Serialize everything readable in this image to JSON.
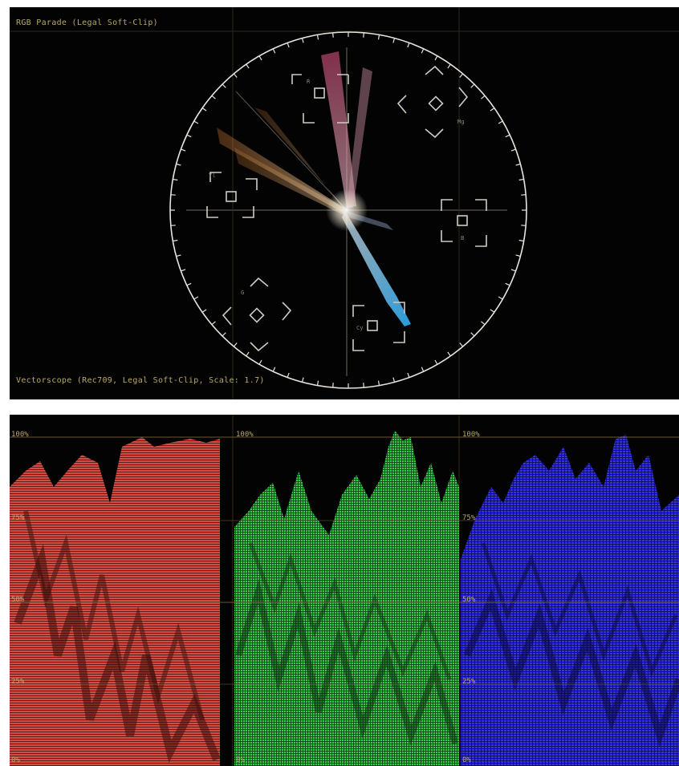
{
  "vectorscope": {
    "top_label": "RGB Parade (Legal Soft-Clip)",
    "bottom_label": "Vectorscope (Rec709, Legal Soft-Clip, Scale: 1.7)",
    "target_labels": [
      "R",
      "Mg",
      "B",
      "Cy",
      "G",
      "Yl"
    ],
    "colors": {
      "graticule": "#e8e4dc",
      "crosshair": "#6b6a5a",
      "label": "#b8a86a"
    }
  },
  "parade": {
    "channels": [
      {
        "name": "red",
        "color": "#ff5a4e"
      },
      {
        "name": "green",
        "color": "#3cf05a"
      },
      {
        "name": "blue",
        "color": "#3a3cff"
      }
    ],
    "scale_labels": [
      "100%",
      "75%",
      "50%",
      "25%",
      "0%"
    ],
    "colors": {
      "gridline": "#7a6a3a",
      "label": "#b8a86a"
    }
  }
}
